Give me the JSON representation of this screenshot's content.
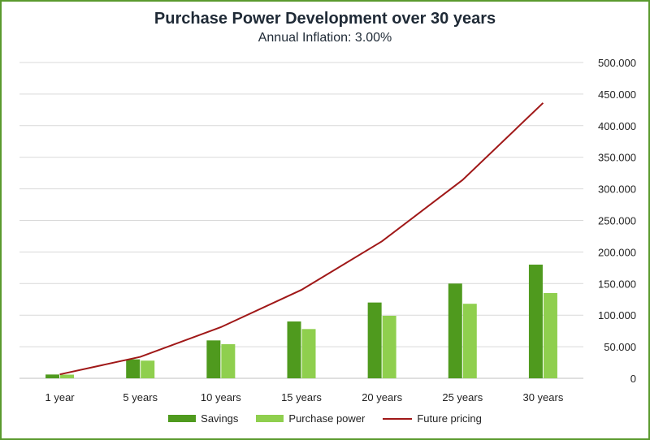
{
  "chart_data": {
    "type": "bar",
    "title": "Purchase Power Development over 30 years",
    "subtitle": "Annual Inflation: 3.00%",
    "categories": [
      "1 year",
      "5 years",
      "10 years",
      "15 years",
      "20 years",
      "25 years",
      "30 years"
    ],
    "series": [
      {
        "name": "Savings",
        "type": "bar",
        "color": "#4f9a1e",
        "values": [
          6000,
          30000,
          60000,
          90000,
          120000,
          150000,
          180000
        ]
      },
      {
        "name": "Purchase power",
        "type": "bar",
        "color": "#8fcf4e",
        "values": [
          5800,
          28000,
          54000,
          78000,
          99000,
          118000,
          135000
        ]
      },
      {
        "name": "Future pricing",
        "type": "line",
        "color": "#a01818",
        "values": [
          6200,
          34000,
          81000,
          140000,
          217000,
          314000,
          436000
        ]
      }
    ],
    "ylim": [
      0,
      500000
    ],
    "yticks": [
      "0",
      "50.000",
      "100.000",
      "150.000",
      "200.000",
      "250.000",
      "300.000",
      "350.000",
      "400.000",
      "450.000",
      "500.000"
    ],
    "y_axis_side": "right",
    "grid": true,
    "legend_position": "bottom"
  }
}
